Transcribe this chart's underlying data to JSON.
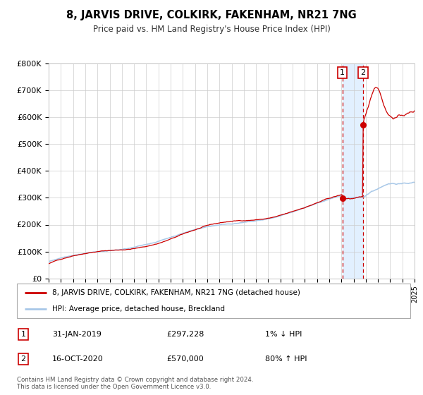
{
  "title": "8, JARVIS DRIVE, COLKIRK, FAKENHAM, NR21 7NG",
  "subtitle": "Price paid vs. HM Land Registry's House Price Index (HPI)",
  "ylim": [
    0,
    800000
  ],
  "yticks": [
    0,
    100000,
    200000,
    300000,
    400000,
    500000,
    600000,
    700000,
    800000
  ],
  "ytick_labels": [
    "£0",
    "£100K",
    "£200K",
    "£300K",
    "£400K",
    "£500K",
    "£600K",
    "£700K",
    "£800K"
  ],
  "hpi_color": "#a8c8e8",
  "price_color": "#cc0000",
  "sale1_date_num": 2019.08,
  "sale1_price": 297228,
  "sale2_date_num": 2020.79,
  "sale2_price": 570000,
  "shade_color": "#ddeeff",
  "legend_entry1": "8, JARVIS DRIVE, COLKIRK, FAKENHAM, NR21 7NG (detached house)",
  "legend_entry2": "HPI: Average price, detached house, Breckland",
  "table_row1_num": "1",
  "table_row1_date": "31-JAN-2019",
  "table_row1_price": "£297,228",
  "table_row1_hpi": "1% ↓ HPI",
  "table_row2_num": "2",
  "table_row2_date": "16-OCT-2020",
  "table_row2_price": "£570,000",
  "table_row2_hpi": "80% ↑ HPI",
  "footnote": "Contains HM Land Registry data © Crown copyright and database right 2024.\nThis data is licensed under the Open Government Licence v3.0.",
  "grid_color": "#cccccc"
}
